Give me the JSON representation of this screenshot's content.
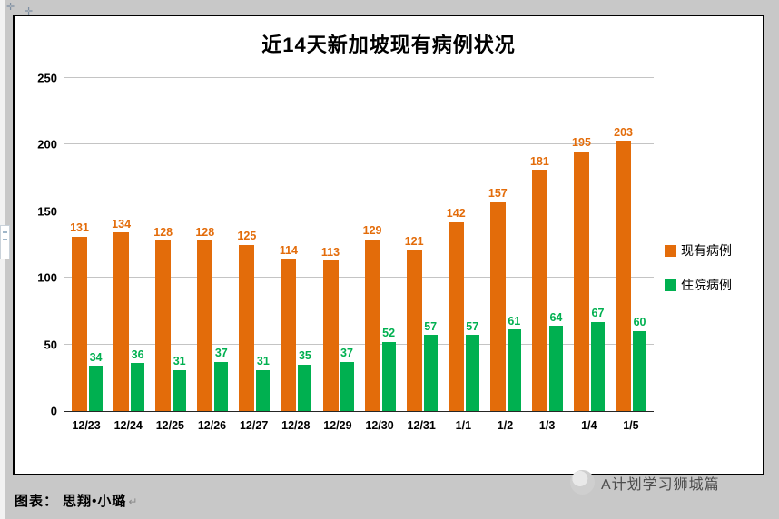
{
  "decor": {
    "corner_symbols": [
      "✛",
      "✛"
    ]
  },
  "chart_data": {
    "type": "bar",
    "title": "近14天新加坡现有病例状况",
    "categories": [
      "12/23",
      "12/24",
      "12/25",
      "12/26",
      "12/27",
      "12/28",
      "12/29",
      "12/30",
      "12/31",
      "1/1",
      "1/2",
      "1/3",
      "1/4",
      "1/5"
    ],
    "series": [
      {
        "name": "现有病例",
        "color": "#E36C0A",
        "values": [
          131,
          134,
          128,
          128,
          125,
          114,
          113,
          129,
          121,
          142,
          157,
          181,
          195,
          203
        ]
      },
      {
        "name": "住院病例",
        "color": "#00B050",
        "values": [
          34,
          36,
          31,
          37,
          31,
          35,
          37,
          52,
          57,
          57,
          61,
          64,
          67,
          60
        ]
      }
    ],
    "ylim": [
      0,
      250
    ],
    "yticks": [
      0,
      50,
      100,
      150,
      200,
      250
    ],
    "grid": true,
    "legend_position": "right",
    "bar_value_labels": true
  },
  "footer": {
    "caption": "图表： 思翔•小璐",
    "paragraph_mark": "↵",
    "watermark_text": "A计划学习狮城篇"
  }
}
